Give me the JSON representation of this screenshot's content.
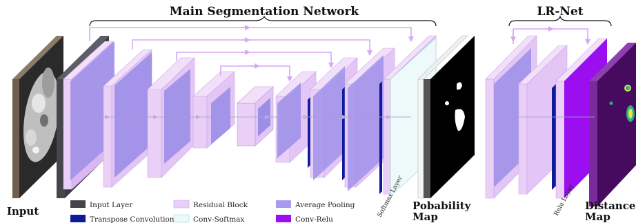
{
  "titles": {
    "main": "Main Segmentation Network",
    "lr": "LR-Net"
  },
  "labels": {
    "input": "Input",
    "probability_line1": "Pobability",
    "probability_line2": "Map",
    "distance_line1": "Distance",
    "distance_line2": "Map",
    "softmax_layer": "Softmax Layer",
    "relu_layer": "Relu Layer"
  },
  "legend": [
    {
      "name": "legend-input-layer",
      "label": "Input Layer",
      "color": "#45454d"
    },
    {
      "name": "legend-transpose-convolution",
      "label": "Transpose Convolution",
      "color": "#0d1a9a"
    },
    {
      "name": "legend-residual-block",
      "label": "Residual Block",
      "color": "#ead0f6"
    },
    {
      "name": "legend-conv-softmax",
      "label": "Conv-Softmax",
      "color": "#eefafa"
    },
    {
      "name": "legend-average-pooling",
      "label": "Average Pooling",
      "color": "#a89af0"
    },
    {
      "name": "legend-conv-relu",
      "label": "Conv-Relu",
      "color": "#9b0ef0"
    }
  ],
  "colors": {
    "residual": "#ead0f6",
    "pooling": "#9c8ee8",
    "transpose": "#0d1a9a",
    "input_layer": "#45454d",
    "softmax": "#eefafa",
    "relu": "#9b0ef0",
    "arrow": "#d9a6f5",
    "flow": "#8a8aa0"
  }
}
